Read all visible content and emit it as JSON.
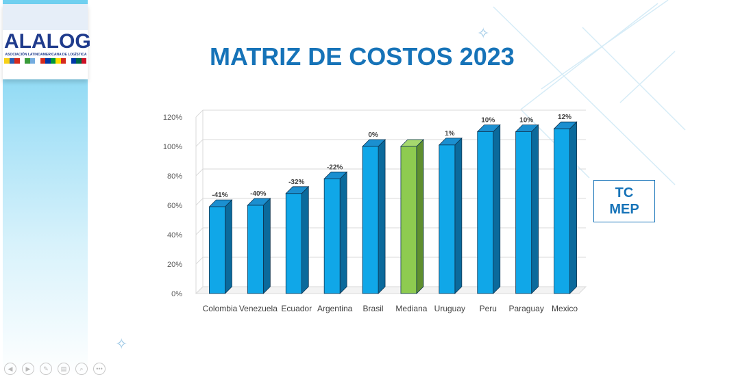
{
  "logo": {
    "name": "ALALOG",
    "subtitle": "ASOCIACIÓN LATINOAMERICANA DE LOGÍSTICA"
  },
  "slide_title": "MATRIZ DE COSTOS 2023",
  "tc_label": {
    "line1": "TC",
    "line2": "MEP"
  },
  "colors": {
    "bar": "#10a7e8",
    "median_bar": "#8ecb50",
    "title": "#1673b8"
  },
  "nav_icons": [
    "prev-icon",
    "next-icon",
    "pen-icon",
    "slides-icon",
    "zoom-icon",
    "more-icon"
  ],
  "chart_data": {
    "type": "bar",
    "title": "",
    "xlabel": "",
    "ylabel": "",
    "ylim": [
      0,
      120
    ],
    "yticks": [
      0,
      20,
      40,
      60,
      80,
      100,
      120
    ],
    "ytick_labels": [
      "0%",
      "20%",
      "40%",
      "60%",
      "80%",
      "100%",
      "120%"
    ],
    "categories": [
      "Colombia",
      "Venezuela",
      "Ecuador",
      "Argentina",
      "Brasil",
      "Mediana",
      "Uruguay",
      "Peru",
      "Paraguay",
      "Mexico"
    ],
    "values": [
      59,
      60,
      68,
      78,
      100,
      100,
      101,
      110,
      110,
      112
    ],
    "data_labels": [
      "-41%",
      "-40%",
      "-32%",
      "-22%",
      "0%",
      "",
      "1%",
      "10%",
      "10%",
      "12%"
    ],
    "highlight_index": 5,
    "grid": true
  }
}
